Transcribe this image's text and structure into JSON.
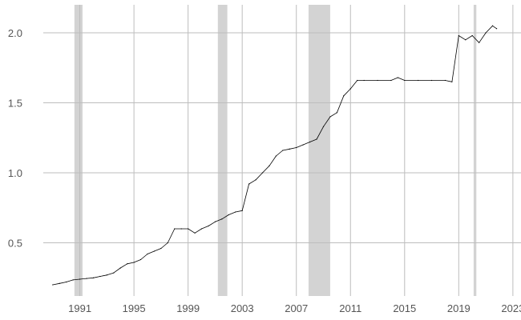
{
  "chart_data": {
    "type": "line",
    "title": "",
    "xlabel": "",
    "ylabel": "",
    "xlim": [
      1988.3,
      2023.6
    ],
    "ylim": [
      0.12,
      2.2
    ],
    "grid": true,
    "legend": "none",
    "x_ticks": [
      1991,
      1995,
      1999,
      2003,
      2007,
      2011,
      2015,
      2019,
      2023
    ],
    "x_tick_labels": [
      "1991",
      "1995",
      "1999",
      "2003",
      "2007",
      "2011",
      "2015",
      "2019",
      "2023"
    ],
    "y_ticks": [
      0.5,
      1.0,
      1.5,
      2.0
    ],
    "y_tick_labels": [
      "0.5",
      "1.0",
      "1.5",
      "2.0"
    ],
    "shaded_periods": [
      {
        "start": 1990.6,
        "end": 1991.2
      },
      {
        "start": 2001.2,
        "end": 2001.9
      },
      {
        "start": 2007.9,
        "end": 2009.5
      },
      {
        "start": 2020.1,
        "end": 2020.3
      }
    ],
    "series_color": "#000000",
    "shade_color": "#d3d3d3",
    "series": [
      {
        "x": [
          1989.0,
          1989.5,
          1990.0,
          1990.5,
          1991.0,
          1991.5,
          1992.0,
          1992.5,
          1993.0,
          1993.5,
          1994.0,
          1994.5,
          1995.0,
          1995.5,
          1996.0,
          1996.5,
          1997.0,
          1997.5,
          1998.0,
          1998.5,
          1999.0,
          1999.5,
          2000.0,
          2000.5,
          2001.0,
          2001.5,
          2002.0,
          2002.5,
          2003.0,
          2003.5,
          2004.0,
          2004.5,
          2005.0,
          2005.5,
          2006.0,
          2006.5,
          2007.0,
          2007.5,
          2008.0,
          2008.5,
          2009.0,
          2009.5,
          2010.0,
          2010.5,
          2011.0,
          2011.5,
          2012.0,
          2013.0,
          2014.0,
          2014.5,
          2015.0,
          2016.0,
          2017.0,
          2018.0,
          2018.5,
          2019.0,
          2019.5,
          2020.0,
          2020.5,
          2021.0,
          2021.5,
          2021.8
        ],
        "y": [
          0.2,
          0.21,
          0.22,
          0.235,
          0.24,
          0.245,
          0.25,
          0.26,
          0.27,
          0.285,
          0.32,
          0.35,
          0.36,
          0.38,
          0.42,
          0.44,
          0.46,
          0.5,
          0.6,
          0.6,
          0.6,
          0.57,
          0.6,
          0.62,
          0.65,
          0.67,
          0.7,
          0.72,
          0.73,
          0.92,
          0.95,
          1.0,
          1.05,
          1.12,
          1.16,
          1.17,
          1.18,
          1.2,
          1.22,
          1.24,
          1.33,
          1.4,
          1.43,
          1.55,
          1.6,
          1.66,
          1.66,
          1.66,
          1.66,
          1.68,
          1.66,
          1.66,
          1.66,
          1.66,
          1.65,
          1.98,
          1.95,
          1.98,
          1.93,
          2.0,
          2.05,
          2.03
        ]
      }
    ]
  }
}
